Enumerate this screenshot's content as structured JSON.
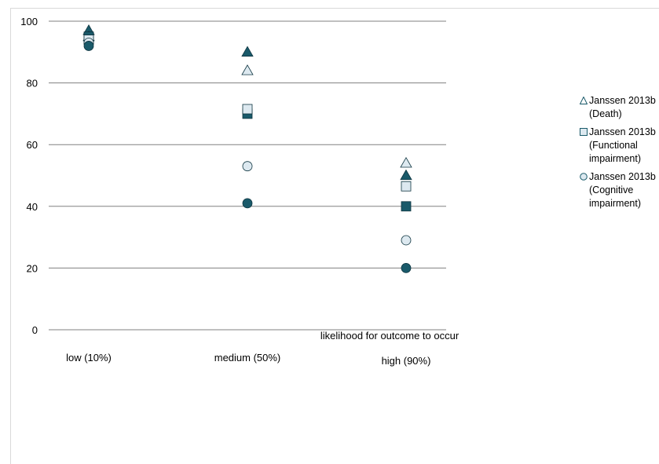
{
  "chart_data": {
    "type": "scatter",
    "xlabel": "likelihood for outcome to occur",
    "ylabel": "",
    "title": "",
    "categories": [
      "low (10%)",
      "medium (50%)",
      "high (90%)"
    ],
    "yticks": [
      0,
      20,
      40,
      60,
      80,
      100
    ],
    "ylim": [
      0,
      100
    ],
    "grid": true,
    "legend_position": "right",
    "legend": [
      {
        "label": "Janssen 2013b\n(Death)",
        "marker": "triangle"
      },
      {
        "label": "Janssen 2013b\n(Functional\nimpairment)",
        "marker": "square"
      },
      {
        "label": "Janssen 2013b\n(Cognitive\nimpairment)",
        "marker": "circle"
      }
    ],
    "series": [
      {
        "marker": "triangle",
        "fill": "#1a5a6a",
        "values": [
          97,
          90,
          50
        ]
      },
      {
        "marker": "triangle",
        "fill": "#dde9f0",
        "values": [
          95,
          84,
          54
        ]
      },
      {
        "marker": "square",
        "fill": "#1a5a6a",
        "values": [
          95,
          70,
          40
        ]
      },
      {
        "marker": "square",
        "fill": "#dde9f0",
        "values": [
          94,
          71.5,
          46.5
        ]
      },
      {
        "marker": "circle",
        "fill": "#dde9f0",
        "values": [
          93,
          53,
          29
        ]
      },
      {
        "marker": "circle",
        "fill": "#1a5a6a",
        "values": [
          92,
          41,
          20
        ]
      }
    ]
  },
  "colors": {
    "dark_marker": "#1a5a6a",
    "light_marker": "#dde9f0",
    "grid": "#808080"
  }
}
